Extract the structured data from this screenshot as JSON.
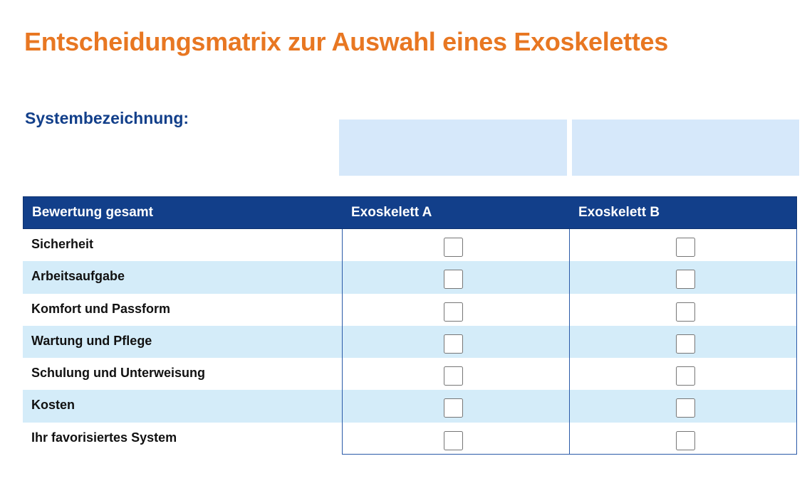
{
  "title": "Entscheidungsmatrix zur Auswahl eines Exoskelettes",
  "system": {
    "label": "Systembezeichnung:",
    "field_a_value": "",
    "field_b_value": ""
  },
  "matrix": {
    "header": {
      "label": "Bewertung gesamt",
      "col_a": "Exoskelett A",
      "col_b": "Exoskelett B"
    },
    "rows": [
      {
        "label": "Sicherheit",
        "a_checked": false,
        "b_checked": false
      },
      {
        "label": "Arbeitsaufgabe",
        "a_checked": false,
        "b_checked": false
      },
      {
        "label": "Komfort und Passform",
        "a_checked": false,
        "b_checked": false
      },
      {
        "label": "Wartung und Pflege",
        "a_checked": false,
        "b_checked": false
      },
      {
        "label": "Schulung und Unterweisung",
        "a_checked": false,
        "b_checked": false
      },
      {
        "label": "Kosten",
        "a_checked": false,
        "b_checked": false
      },
      {
        "label": "Ihr favorisiertes System",
        "a_checked": false,
        "b_checked": false
      }
    ]
  },
  "colors": {
    "title": "#e87722",
    "accent": "#123f8a",
    "field_bg": "#d6e8fa",
    "row_shade": "#d4ecf9"
  }
}
